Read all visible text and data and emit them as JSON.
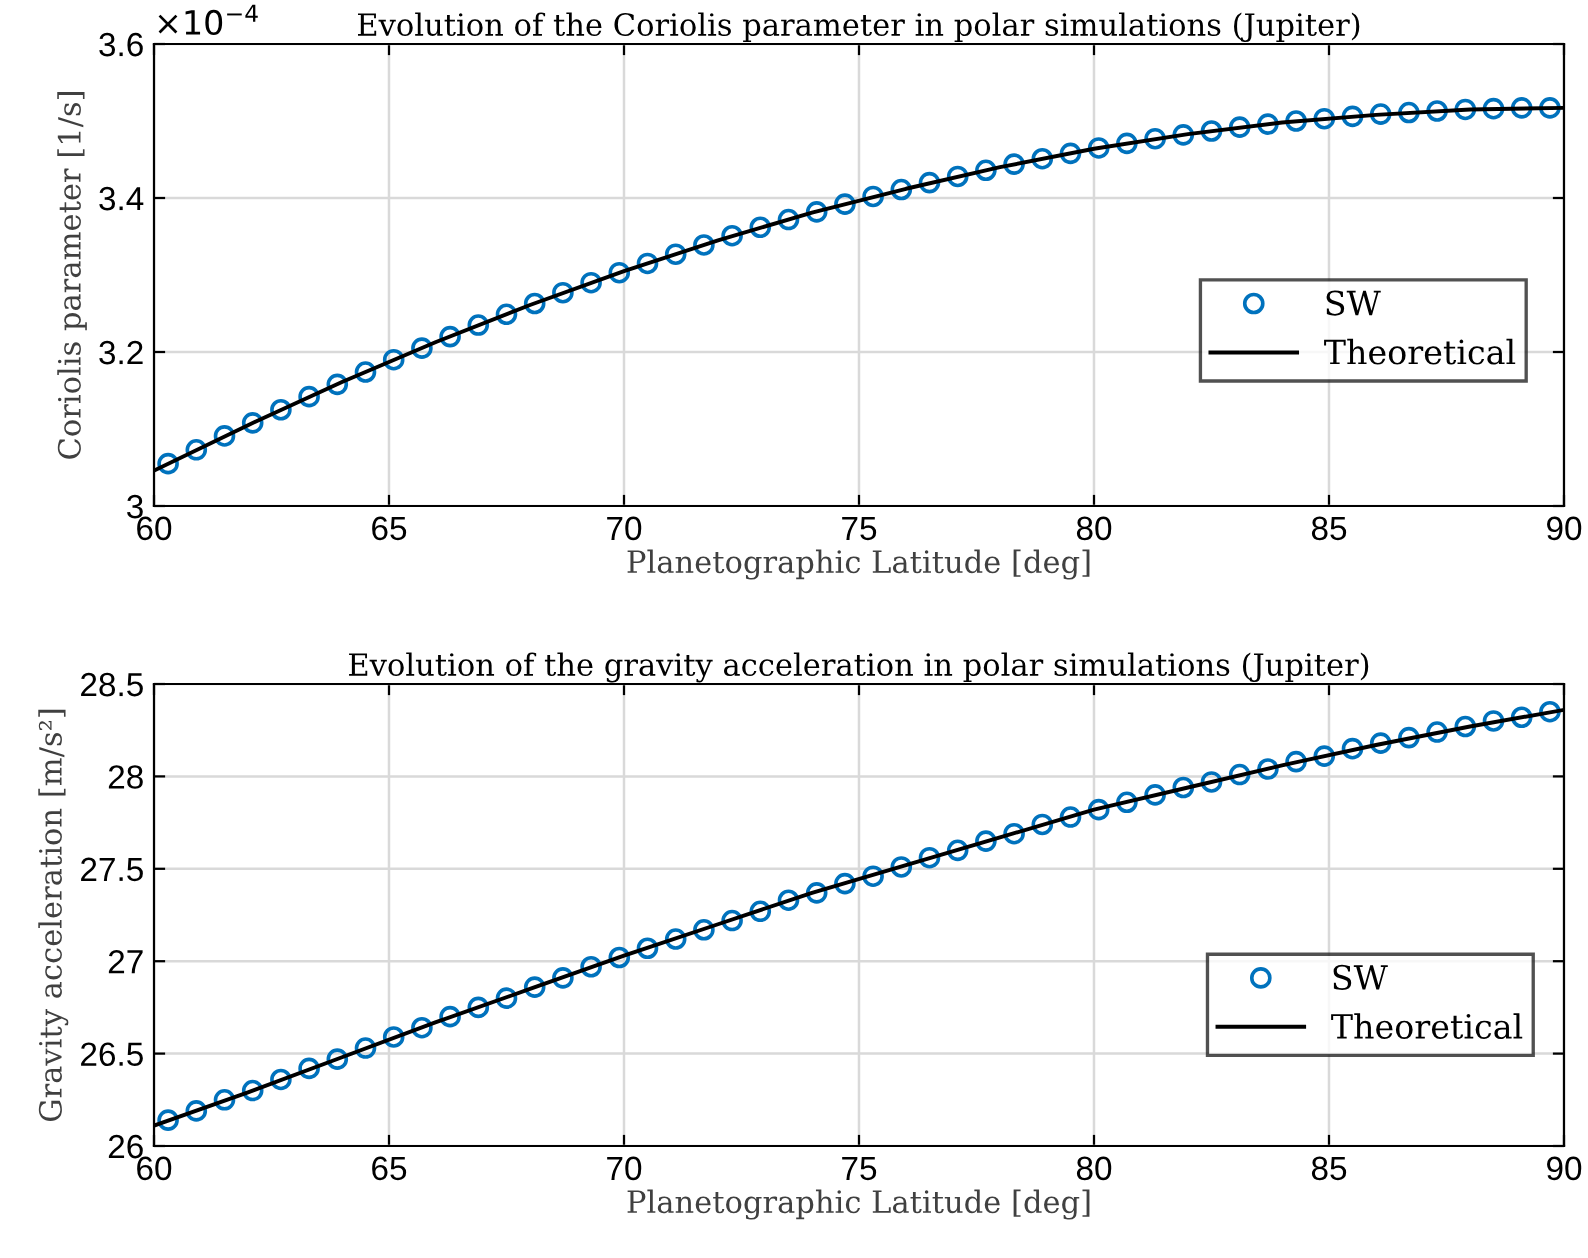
{
  "chart_data": [
    {
      "type": "scatter",
      "title": "Evolution of the Coriolis parameter in polar simulations (Jupiter)",
      "xlabel": "Planetographic Latitude [deg]",
      "ylabel": "Coriolis parameter [1/s]",
      "annotations": [
        "×10$^{−4}$"
      ],
      "xlim": [
        60,
        90
      ],
      "xticks": [
        60,
        65,
        70,
        75,
        80,
        85,
        90
      ],
      "ylim": [
        3,
        3.6
      ],
      "yticks": [
        3,
        3.2,
        3.4,
        3.6
      ],
      "grid": true,
      "legend": "right",
      "series": [
        {
          "name": "SW",
          "marker": "circle",
          "color": "#0072bd",
          "x": [
            60.3,
            60.9,
            61.5,
            62.1,
            62.7,
            63.3,
            63.9,
            64.5,
            65.1,
            65.7,
            66.3,
            66.9,
            67.5,
            68.1,
            68.7,
            69.3,
            69.9,
            70.5,
            71.1,
            71.7,
            72.3,
            72.9,
            73.5,
            74.1,
            74.7,
            75.3,
            75.9,
            76.5,
            77.1,
            77.7,
            78.3,
            78.9,
            79.5,
            80.1,
            80.7,
            81.3,
            81.9,
            82.5,
            83.1,
            83.7,
            84.3,
            84.9,
            85.5,
            86.1,
            86.7,
            87.3,
            87.9,
            88.5,
            89.1,
            89.7
          ],
          "values": [
            3.055,
            3.073,
            3.091,
            3.108,
            3.125,
            3.142,
            3.158,
            3.174,
            3.19,
            3.205,
            3.22,
            3.235,
            3.249,
            3.263,
            3.277,
            3.29,
            3.303,
            3.315,
            3.327,
            3.339,
            3.351,
            3.362,
            3.372,
            3.382,
            3.392,
            3.402,
            3.411,
            3.42,
            3.428,
            3.436,
            3.444,
            3.451,
            3.458,
            3.465,
            3.471,
            3.477,
            3.482,
            3.487,
            3.492,
            3.496,
            3.5,
            3.503,
            3.506,
            3.509,
            3.511,
            3.513,
            3.515,
            3.516,
            3.517,
            3.517
          ]
        },
        {
          "name": "Theoretical",
          "type": "line",
          "line_style": "solid",
          "color": "#000000",
          "x": [
            60,
            62,
            64,
            66,
            68,
            70,
            72,
            74,
            76,
            78,
            80,
            82,
            84,
            86,
            88,
            90
          ],
          "values": [
            3.046,
            3.105,
            3.161,
            3.213,
            3.261,
            3.305,
            3.345,
            3.381,
            3.412,
            3.44,
            3.464,
            3.483,
            3.498,
            3.508,
            3.515,
            3.517
          ]
        }
      ]
    },
    {
      "type": "scatter",
      "title": "Evolution of the gravity acceleration in polar simulations (Jupiter)",
      "xlabel": "Planetographic Latitude [deg]",
      "ylabel": "Gravity acceleration [m/s²]",
      "xlim": [
        60,
        90
      ],
      "xticks": [
        60,
        65,
        70,
        75,
        80,
        85,
        90
      ],
      "ylim": [
        26,
        28.5
      ],
      "yticks": [
        26,
        26.5,
        27,
        27.5,
        28,
        28.5
      ],
      "grid": true,
      "legend": "bottom right",
      "series": [
        {
          "name": "SW",
          "marker": "circle",
          "color": "#0072bd",
          "x": [
            60.3,
            60.9,
            61.5,
            62.1,
            62.7,
            63.3,
            63.9,
            64.5,
            65.1,
            65.7,
            66.3,
            66.9,
            67.5,
            68.1,
            68.7,
            69.3,
            69.9,
            70.5,
            71.1,
            71.7,
            72.3,
            72.9,
            73.5,
            74.1,
            74.7,
            75.3,
            75.9,
            76.5,
            77.1,
            77.7,
            78.3,
            78.9,
            79.5,
            80.1,
            80.7,
            81.3,
            81.9,
            82.5,
            83.1,
            83.7,
            84.3,
            84.9,
            85.5,
            86.1,
            86.7,
            87.3,
            87.9,
            88.5,
            89.1,
            89.7
          ],
          "values": [
            26.14,
            26.19,
            26.25,
            26.3,
            26.36,
            26.42,
            26.47,
            26.53,
            26.59,
            26.64,
            26.7,
            26.75,
            26.8,
            26.86,
            26.91,
            26.97,
            27.02,
            27.07,
            27.12,
            27.17,
            27.22,
            27.27,
            27.33,
            27.37,
            27.42,
            27.46,
            27.51,
            27.56,
            27.6,
            27.65,
            27.69,
            27.74,
            27.78,
            27.82,
            27.86,
            27.9,
            27.94,
            27.97,
            28.01,
            28.04,
            28.08,
            28.11,
            28.15,
            28.18,
            28.21,
            28.24,
            28.27,
            28.3,
            28.32,
            28.35
          ]
        },
        {
          "name": "Theoretical",
          "type": "line",
          "line_style": "solid",
          "color": "#000000",
          "x": [
            60,
            62,
            64,
            66,
            68,
            70,
            72,
            74,
            76,
            78,
            80,
            82,
            84,
            86,
            88,
            90
          ],
          "values": [
            26.11,
            26.29,
            26.48,
            26.67,
            26.85,
            27.03,
            27.2,
            27.37,
            27.52,
            27.67,
            27.82,
            27.94,
            28.06,
            28.17,
            28.27,
            28.36
          ]
        }
      ]
    }
  ]
}
